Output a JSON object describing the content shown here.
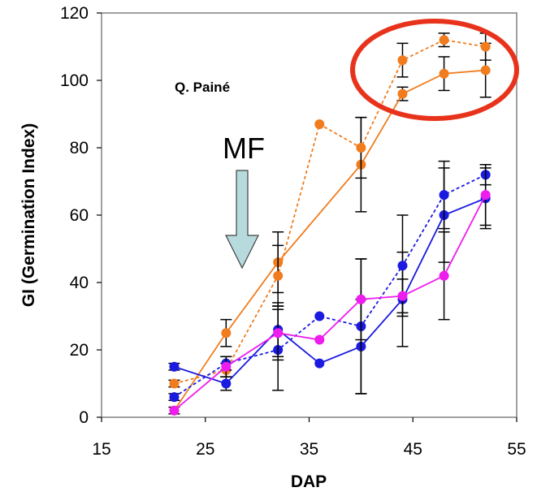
{
  "chart_data": {
    "type": "line",
    "xlabel": "DAP",
    "ylabel": "GI (Germination Index)",
    "xlim": [
      15,
      55
    ],
    "ylim": [
      0,
      120
    ],
    "xticks": [
      15,
      25,
      35,
      45,
      55
    ],
    "yticks": [
      0,
      20,
      40,
      60,
      80,
      100,
      120
    ],
    "grid": false,
    "legend": "none",
    "annotations": {
      "sample_label": "Q. Painé",
      "arrow_label": "MF",
      "arrow_color": "#b7dbdd",
      "highlight_color": "#e8331c"
    },
    "series": [
      {
        "color": "#f07c1e",
        "style": "solid",
        "x": [
          22,
          27,
          32,
          40,
          44,
          48,
          52
        ],
        "y": [
          2,
          25,
          46,
          75,
          96,
          102,
          103
        ],
        "err": [
          1,
          4,
          9,
          14,
          2,
          5,
          8
        ]
      },
      {
        "color": "#f07c1e",
        "style": "dashed",
        "x": [
          22,
          27,
          32,
          36,
          40,
          44,
          48,
          52
        ],
        "y": [
          10,
          14,
          42,
          87,
          80,
          106,
          112,
          110
        ],
        "err": [
          1,
          2,
          9,
          0,
          9,
          5,
          2,
          4
        ]
      },
      {
        "color": "#1a1ae0",
        "style": "solid",
        "x": [
          22,
          27,
          32,
          36,
          40,
          44,
          48,
          52
        ],
        "y": [
          15,
          10,
          26,
          16,
          21,
          35,
          60,
          65
        ],
        "err": [
          1,
          2,
          8,
          0,
          14,
          14,
          14,
          9
        ]
      },
      {
        "color": "#1a1ae0",
        "style": "dashed",
        "x": [
          22,
          27,
          32,
          36,
          40,
          44,
          48,
          52
        ],
        "y": [
          6,
          16,
          20,
          30,
          27,
          45,
          66,
          72
        ],
        "err": [
          1,
          2,
          12,
          0,
          20,
          15,
          10,
          3
        ]
      },
      {
        "color": "#ee1cee",
        "style": "solid",
        "x": [
          22,
          27,
          32,
          36,
          40,
          44,
          48,
          52
        ],
        "y": [
          2,
          15,
          25,
          23,
          35,
          36,
          42,
          66
        ],
        "err": [
          0,
          3,
          8,
          0,
          12,
          5,
          13,
          9
        ]
      }
    ]
  }
}
